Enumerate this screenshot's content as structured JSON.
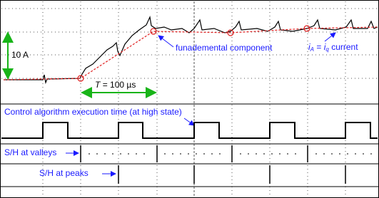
{
  "annotations": {
    "amplitude": "10 A",
    "fundamental": "funademental component",
    "current": {
      "lhs": "i",
      "lhs_sub": "A",
      "eq": "=",
      "rhs": "i",
      "rhs_sub": "q",
      "text": "current"
    },
    "period": {
      "symbol": "T",
      "eq": "=",
      "value": "100 µs"
    },
    "control": "Control algorithm execution time (at high state)",
    "valleys": "S/H at valleys",
    "peaks": "S/H at peaks"
  }
}
